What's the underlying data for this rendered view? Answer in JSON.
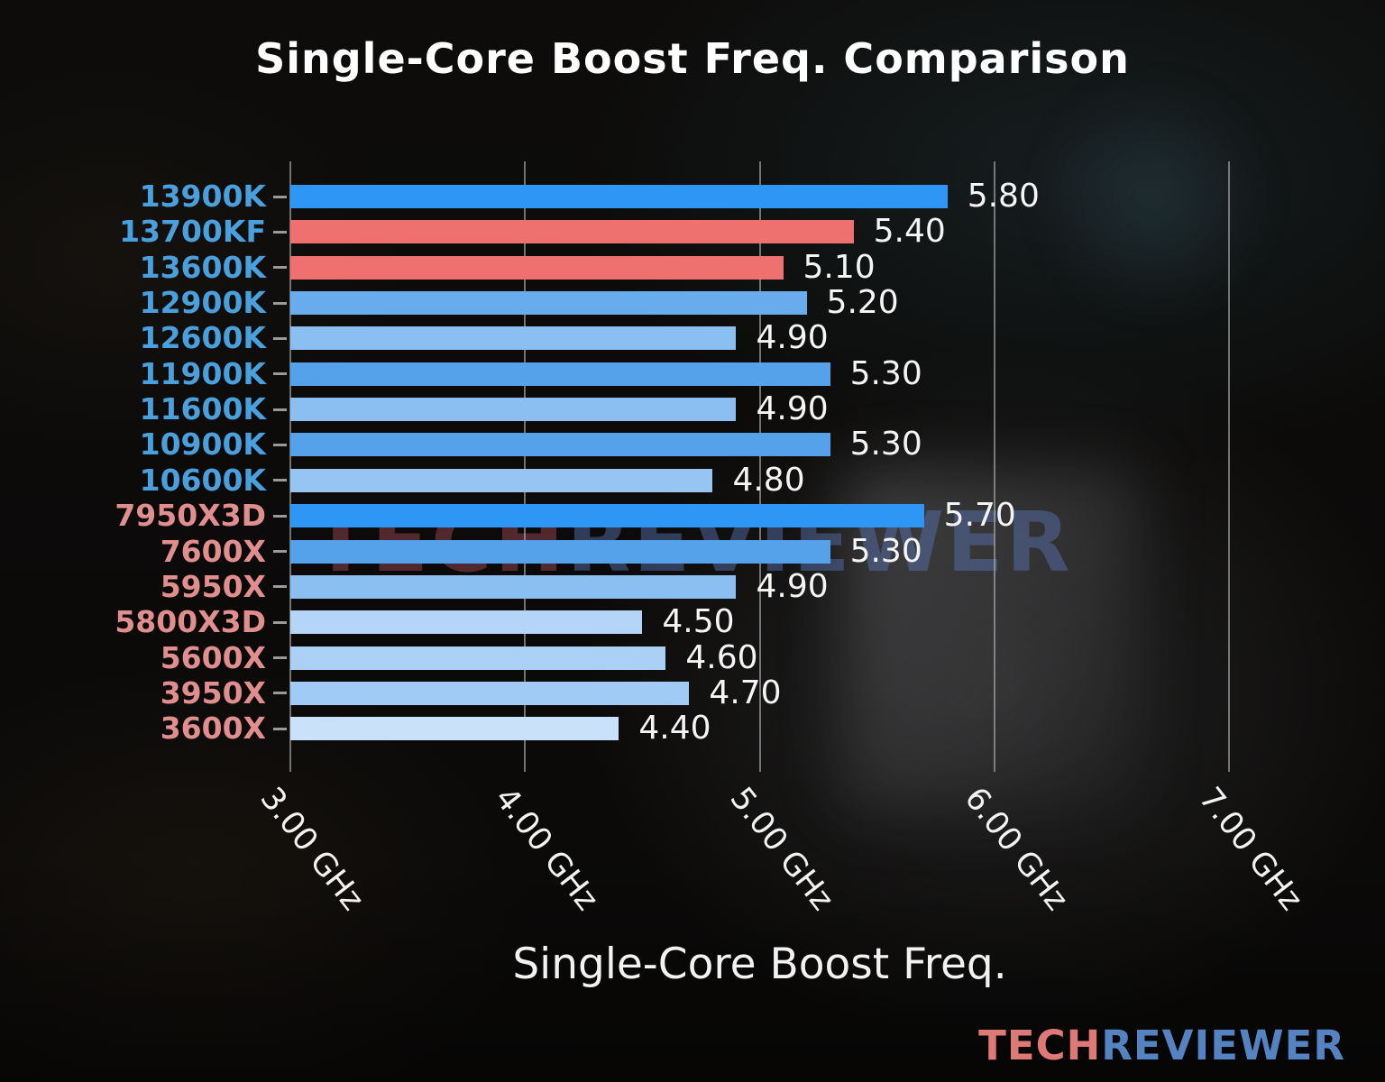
{
  "watermark": {
    "tech": "TECH",
    "reviewer": "REVIEWER"
  },
  "brand": {
    "tech": "TECH",
    "reviewer": "REVIEWER"
  },
  "chart_data": {
    "type": "bar",
    "orientation": "horizontal",
    "title": "Single-Core Boost Freq. Comparison",
    "xlabel": "Single-Core Boost Freq.",
    "unit": "GHz",
    "xlim": [
      3.0,
      7.0
    ],
    "grid": true,
    "x_tick_values": [
      3,
      4,
      5,
      6,
      7
    ],
    "x_tick_labels": [
      "3.00 GHz",
      "4.00 GHz",
      "5.00 GHz",
      "6.00 GHz",
      "7.00 GHz"
    ],
    "categories": [
      "13900K",
      "13700KF",
      "13600K",
      "12900K",
      "12600K",
      "11900K",
      "11600K",
      "10900K",
      "10600K",
      "7950X3D",
      "7600X",
      "5950X",
      "5800X3D",
      "5600X",
      "3950X",
      "3600X"
    ],
    "values": [
      5.8,
      5.4,
      5.1,
      5.2,
      4.9,
      5.3,
      4.9,
      5.3,
      4.8,
      5.7,
      5.3,
      4.9,
      4.5,
      4.6,
      4.7,
      4.4
    ],
    "value_labels": [
      "5.80",
      "5.40",
      "5.10",
      "5.20",
      "4.90",
      "5.30",
      "4.90",
      "5.30",
      "4.80",
      "5.70",
      "5.30",
      "4.90",
      "4.50",
      "4.60",
      "4.70",
      "4.40"
    ],
    "bar_colors": [
      "#2e96f4",
      "#ee7170",
      "#ee7170",
      "#68acee",
      "#8bbff2",
      "#56a2ea",
      "#8bbff2",
      "#56a2ea",
      "#96c5f3",
      "#2e96f4",
      "#56a2ea",
      "#8bbff2",
      "#b4d5f7",
      "#aad0f6",
      "#a0cbf4",
      "#c9e1f9"
    ],
    "category_colors": [
      "#4aa0dc",
      "#4aa0dc",
      "#4aa0dc",
      "#4aa0dc",
      "#4aa0dc",
      "#4aa0dc",
      "#4aa0dc",
      "#4aa0dc",
      "#4aa0dc",
      "#e08e8e",
      "#e08e8e",
      "#e08e8e",
      "#e08e8e",
      "#e08e8e",
      "#e08e8e",
      "#e08e8e"
    ],
    "value_text_color": "#f5f5f5",
    "gridline_color": "#b2b2b2"
  }
}
